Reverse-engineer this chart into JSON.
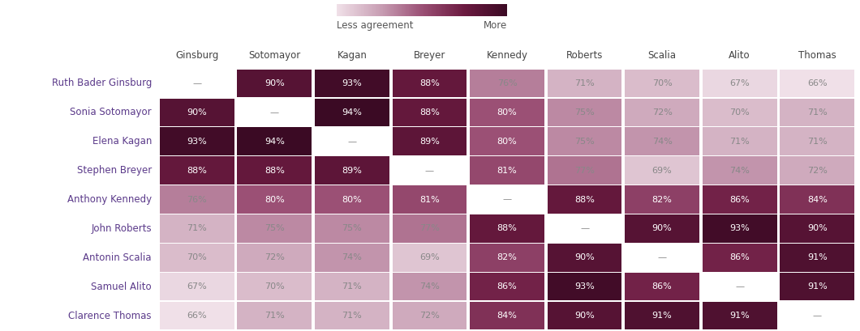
{
  "rows": [
    "Ruth Bader Ginsburg",
    "Sonia Sotomayor",
    "Elena Kagan",
    "Stephen Breyer",
    "Anthony Kennedy",
    "John Roberts",
    "Antonin Scalia",
    "Samuel Alito",
    "Clarence Thomas"
  ],
  "cols": [
    "Ginsburg",
    "Sotomayor",
    "Kagan",
    "Breyer",
    "Kennedy",
    "Roberts",
    "Scalia",
    "Alito",
    "Thomas"
  ],
  "values": [
    [
      null,
      90,
      93,
      88,
      76,
      71,
      70,
      67,
      66
    ],
    [
      90,
      null,
      94,
      88,
      80,
      75,
      72,
      70,
      71
    ],
    [
      93,
      94,
      null,
      89,
      80,
      75,
      74,
      71,
      71
    ],
    [
      88,
      88,
      89,
      null,
      81,
      77,
      69,
      74,
      72
    ],
    [
      76,
      80,
      80,
      81,
      null,
      88,
      82,
      86,
      84
    ],
    [
      71,
      75,
      75,
      77,
      88,
      null,
      90,
      93,
      90
    ],
    [
      70,
      72,
      74,
      69,
      82,
      90,
      null,
      86,
      91
    ],
    [
      67,
      70,
      71,
      74,
      86,
      93,
      86,
      null,
      91
    ],
    [
      66,
      71,
      71,
      72,
      84,
      90,
      91,
      91,
      null
    ]
  ],
  "color_min": 66,
  "color_max": 94,
  "colormap_colors": [
    "#f0e0e8",
    "#c9a0b5",
    "#9b5075",
    "#6b1a40",
    "#3b0a24"
  ],
  "bg_color": "#ffffff",
  "text_color_light": "#ffffff",
  "text_color_dark": "#888888",
  "dash_color_dark": "#888888",
  "row_label_color": "#5b3a8a",
  "col_label_color": "#444444",
  "cell_text_threshold": 78,
  "fig_width": 10.6,
  "fig_height": 4.09,
  "colorbar_label_less": "Less agreement",
  "colorbar_label_more": "More"
}
